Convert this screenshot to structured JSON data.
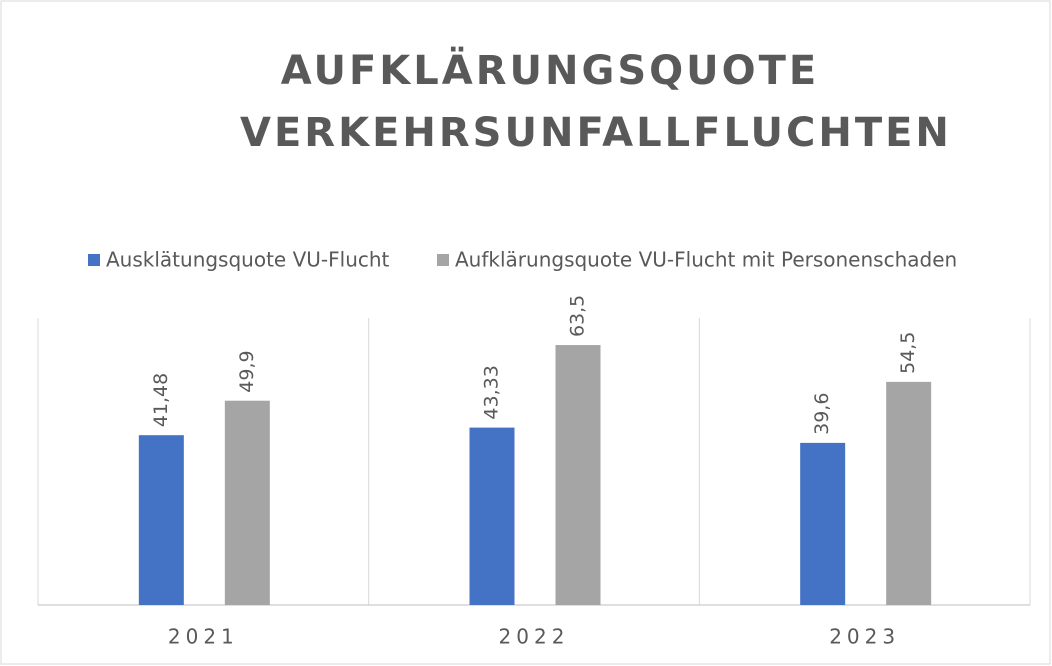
{
  "chart_data": {
    "type": "bar",
    "title": "AUFKLÄRUNGSQUOTE VERKEHRSUNFALLFLUCHTEN",
    "categories": [
      "2021",
      "2022",
      "2023"
    ],
    "series": [
      {
        "name": "Ausklätungsquote VU-Flucht",
        "color": "#4472c4",
        "values": [
          41.48,
          43.33,
          39.6
        ],
        "value_labels": [
          "41,48",
          "43,33",
          "39,6"
        ]
      },
      {
        "name": "Aufklärungsquote VU-Flucht mit Personenschaden",
        "color": "#a5a5a5",
        "values": [
          49.9,
          63.5,
          54.5
        ],
        "value_labels": [
          "49,9",
          "63,5",
          "54,5"
        ]
      }
    ],
    "legend": "top",
    "grid": true
  }
}
